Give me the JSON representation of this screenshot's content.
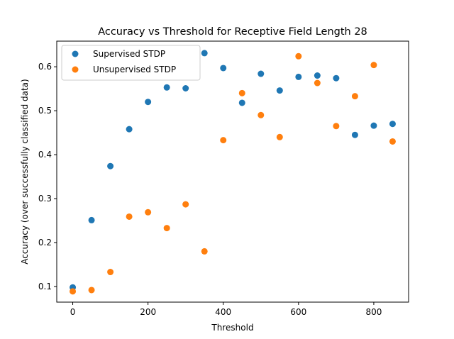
{
  "chart_data": {
    "type": "scatter",
    "title": "Accuracy vs Threshold for Receptive Field Length 28",
    "xlabel": "Threshold",
    "ylabel": "Accuracy (over successfully classified data)",
    "xlim": [
      -42.5,
      892.5
    ],
    "ylim": [
      0.0645,
      0.6583
    ],
    "xticks": [
      0,
      200,
      400,
      600,
      800
    ],
    "yticks": [
      0.1,
      0.2,
      0.3,
      0.4,
      0.5,
      0.6
    ],
    "grid": false,
    "legend_position": "top-left",
    "series": [
      {
        "name": "Supervised STDP",
        "color": "#1f77b4",
        "x": [
          0,
          50,
          100,
          150,
          200,
          250,
          300,
          350,
          400,
          450,
          500,
          550,
          600,
          650,
          700,
          750,
          800,
          850
        ],
        "y": [
          0.098,
          0.251,
          0.374,
          0.458,
          0.52,
          0.553,
          0.551,
          0.631,
          0.597,
          0.518,
          0.584,
          0.546,
          0.577,
          0.58,
          0.574,
          0.445,
          0.466,
          0.47
        ]
      },
      {
        "name": "Unsupervised STDP",
        "color": "#ff7f0e",
        "x": [
          0,
          50,
          100,
          150,
          200,
          250,
          300,
          350,
          400,
          450,
          500,
          550,
          600,
          650,
          700,
          750,
          800,
          850
        ],
        "y": [
          0.089,
          0.092,
          0.133,
          0.259,
          0.269,
          0.233,
          0.287,
          0.18,
          0.433,
          0.54,
          0.49,
          0.44,
          0.624,
          0.563,
          0.465,
          0.533,
          0.604,
          0.43
        ]
      }
    ]
  }
}
